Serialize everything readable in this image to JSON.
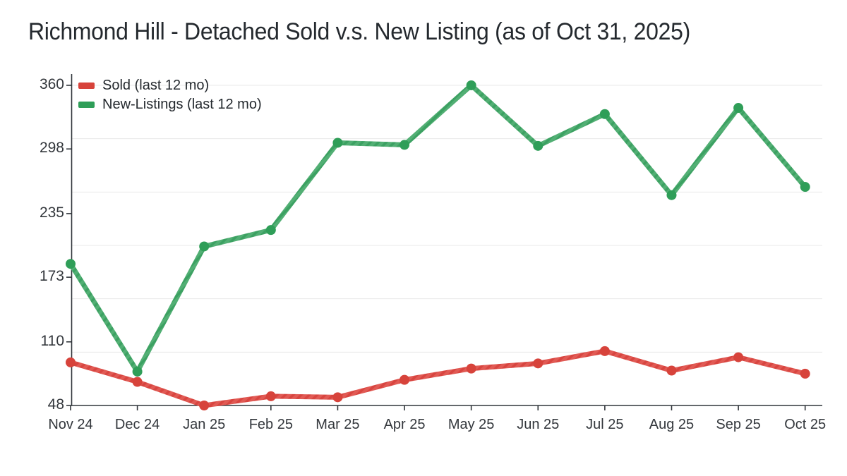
{
  "title": "Richmond Hill - Detached Sold v.s. New Listing (as of Oct 31, 2025)",
  "chart_data": {
    "type": "line",
    "title": "Richmond Hill - Detached Sold v.s. New Listing (as of Oct 31, 2025)",
    "categories": [
      "Nov 24",
      "Dec 24",
      "Jan 25",
      "Feb 25",
      "Mar 25",
      "Apr 25",
      "May 25",
      "Jun 25",
      "Jul 25",
      "Aug 25",
      "Sep 25",
      "Oct 25"
    ],
    "series": [
      {
        "name": "Sold (last 12 mo)",
        "color": "#d7433b",
        "line_color": "#e15a54",
        "stripe_color": "#d84540",
        "values": [
          90,
          71,
          48,
          57,
          56,
          73,
          84,
          89,
          101,
          82,
          95,
          79
        ]
      },
      {
        "name": "New-Listings (last 12 mo)",
        "color": "#2f9e58",
        "line_color": "#52af74",
        "stripe_color": "#3ca162",
        "values": [
          186,
          81,
          203,
          219,
          304,
          302,
          360,
          301,
          332,
          253,
          338,
          261
        ]
      }
    ],
    "xlabel": "",
    "ylabel": "",
    "ylim": [
      48,
      360
    ],
    "yticks": [
      48,
      110,
      173,
      235,
      298,
      360
    ],
    "legend_position": "top-left",
    "grid": "horizontal",
    "background": "#ffffff",
    "gridline_color": "#e8e8e8",
    "axis_color": "#31363b",
    "text_color": "#33373c"
  }
}
